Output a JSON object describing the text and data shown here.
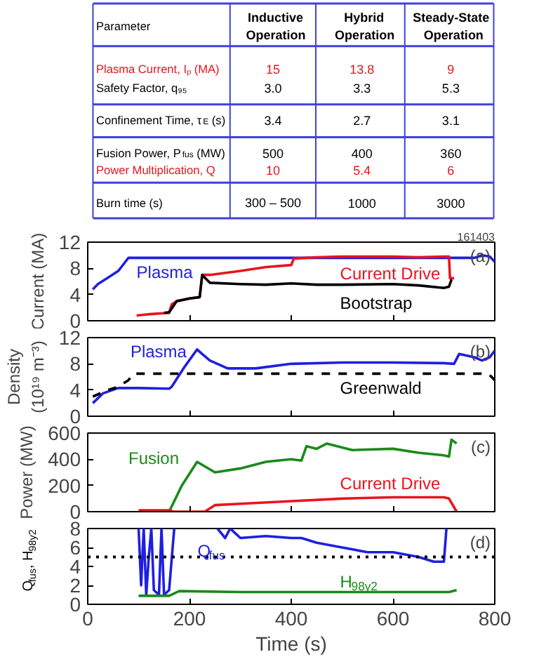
{
  "chart_data": [
    {
      "type": "other",
      "annotations": [
        "Parameter",
        "Inductive\nOperation",
        "Hybrid\nOperation",
        "Steady-State\nOperation",
        "Plasma Current, Iₚ (MA)",
        "15",
        "13.8",
        "9",
        "Safety Factor, q₉₅",
        "3.0",
        "3.3",
        "5.3",
        "Confinement Time, τ$_{E}$ (s)",
        "3.4",
        "2.7",
        "3.1",
        "Fusion Power, P$_{fus}$ (MW)",
        "500",
        "400",
        "360",
        "Power Multiplication, Q",
        "10",
        "5.4",
        "6",
        "Burn time (s)",
        "300 – 500",
        "1000",
        "3000"
      ],
      "colors": [
        "#000000",
        "#000000",
        "#000000",
        "#000000",
        "#e8141e",
        "#e8141e",
        "#e8141e",
        "#e8141e",
        "#000000",
        "#000000",
        "#000000",
        "#000000",
        "#000000",
        "#000000",
        "#000000",
        "#000000",
        "#000000",
        "#000000",
        "#000000",
        "#000000",
        "#e8141e",
        "#e8141e",
        "#e8141e",
        "#e8141e",
        "#000000",
        "#000000",
        "#000000",
        "#000000"
      ]
    },
    {
      "type": "line",
      "title": "161403",
      "ylabel": "Current (MA)",
      "xlim": [
        0,
        800
      ],
      "xticks": [
        0,
        200,
        400,
        600,
        800
      ],
      "ylim": [
        0,
        12
      ],
      "yticks": [
        0,
        4,
        8,
        12
      ],
      "tick_labels": "y",
      "grid": false,
      "line_style": "solid",
      "marker": "none",
      "series": [
        {
          "name": "Plasma",
          "color": "#1f1fe0",
          "x": [
            10,
            20,
            40,
            60,
            70,
            80,
            200,
            400,
            600,
            760,
            775,
            790,
            800
          ],
          "values": [
            4.8,
            5.6,
            6.6,
            7.6,
            8.6,
            9.6,
            9.6,
            9.6,
            9.6,
            9.6,
            10,
            9.8,
            9.0
          ]
        },
        {
          "name": "Current Drive",
          "color": "#e8141e",
          "x": [
            96,
            120,
            160,
            165,
            175,
            200,
            220,
            225,
            240,
            300,
            350,
            400,
            405,
            450,
            500,
            600,
            650,
            700,
            710,
            712,
            720
          ],
          "values": [
            0.8,
            1.0,
            1.2,
            2.5,
            3.0,
            3.4,
            3.6,
            7.0,
            7.0,
            7.6,
            8.2,
            8.5,
            9.5,
            9.7,
            9.8,
            9.8,
            9.7,
            9.8,
            9.8,
            6.5,
            6.5
          ]
        },
        {
          "name": "Bootstrap",
          "color": "#000000",
          "x": [
            150,
            160,
            175,
            200,
            220,
            225,
            240,
            300,
            350,
            400,
            450,
            500,
            600,
            650,
            700,
            710,
            715
          ],
          "values": [
            1.2,
            1.3,
            3.0,
            3.4,
            3.6,
            7.0,
            5.8,
            5.6,
            5.5,
            5.7,
            5.5,
            5.5,
            5.6,
            5.4,
            5.0,
            5.2,
            6.3
          ]
        }
      ],
      "annotations": [
        "(a)"
      ]
    },
    {
      "type": "line",
      "ylabel": "Density\n(10¹⁹ m⁻³)",
      "xlim": [
        0,
        800
      ],
      "xticks": [
        0,
        200,
        400,
        600,
        800
      ],
      "ylim": [
        0,
        12
      ],
      "yticks": [
        0,
        4,
        8,
        12
      ],
      "tick_labels": "y",
      "grid": false,
      "marker": "none",
      "series": [
        {
          "name": "Plasma",
          "color": "#1f1fe0",
          "line_style": "solid",
          "x": [
            10,
            30,
            60,
            100,
            160,
            165,
            190,
            215,
            225,
            240,
            275,
            330,
            400,
            500,
            600,
            700,
            720,
            730,
            760,
            775,
            790,
            800
          ],
          "values": [
            2.0,
            3.5,
            4.3,
            4.3,
            4.2,
            4.5,
            7.5,
            10.2,
            9.5,
            8.5,
            7.3,
            7.3,
            8.0,
            8.2,
            8.2,
            8.1,
            8.0,
            9.5,
            9.0,
            8.5,
            9.0,
            10.0
          ]
        },
        {
          "name": "Greenwald",
          "color": "#000000",
          "line_style": "dashed",
          "x": [
            10,
            40,
            60,
            80,
            90,
            200,
            400,
            600,
            780,
            790,
            800
          ],
          "values": [
            3.0,
            4.0,
            4.5,
            5.5,
            6.5,
            6.5,
            6.5,
            6.5,
            6.5,
            6.3,
            5.5
          ]
        }
      ],
      "annotations": [
        "(b)"
      ]
    },
    {
      "type": "line",
      "ylabel": "Power (MW)",
      "xlim": [
        0,
        800
      ],
      "xticks": [
        0,
        200,
        400,
        600,
        800
      ],
      "ylim": [
        0,
        600
      ],
      "yticks": [
        0,
        200,
        400,
        600
      ],
      "tick_labels": "y",
      "grid": false,
      "line_style": "solid",
      "marker": "none",
      "series": [
        {
          "name": "Fusion",
          "color": "#1a8a1a",
          "x": [
            100,
            160,
            185,
            215,
            250,
            300,
            350,
            400,
            420,
            430,
            450,
            470,
            520,
            600,
            650,
            700,
            710,
            715,
            725
          ],
          "values": [
            0,
            0,
            200,
            380,
            300,
            330,
            380,
            400,
            390,
            500,
            480,
            520,
            470,
            480,
            450,
            430,
            420,
            550,
            520
          ]
        },
        {
          "name": "Current Drive",
          "color": "#e8141e",
          "x": [
            100,
            160,
            170,
            230,
            250,
            300,
            400,
            500,
            600,
            700,
            710,
            725
          ],
          "values": [
            10,
            10,
            0,
            0,
            50,
            60,
            80,
            100,
            110,
            110,
            100,
            0
          ]
        }
      ],
      "annotations": [
        "(c)"
      ]
    },
    {
      "type": "line",
      "xlabel": "Time (s)",
      "ylabel": "Q$_{fus}$, H$_{98y2}$",
      "xlim": [
        0,
        800
      ],
      "xticks": [
        0,
        200,
        400,
        600,
        800
      ],
      "ylim": [
        0,
        8
      ],
      "yticks": [
        0,
        2,
        4,
        6,
        8
      ],
      "grid": false,
      "line_style": "solid",
      "marker": "none",
      "ref_lines": [
        {
          "axis": "y",
          "value": 5,
          "color": "#000000",
          "line_style": "dotted"
        }
      ],
      "series": [
        {
          "name": "Q$_{fus}$",
          "color": "#1f1fe0",
          "x": [
            100,
            105,
            110,
            115,
            120,
            125,
            130,
            140,
            145,
            150,
            160,
            170,
            175,
            250,
            255,
            270,
            280,
            300,
            350,
            400,
            420,
            450,
            500,
            550,
            600,
            650,
            680,
            700,
            705
          ],
          "values": [
            8,
            2,
            8,
            1,
            5,
            8,
            1.5,
            1,
            8,
            1,
            1.5,
            8,
            null,
            null,
            8,
            7,
            8,
            7,
            7.2,
            7,
            7,
            6.5,
            6,
            5.5,
            5.5,
            5,
            4.5,
            4.5,
            8
          ]
        },
        {
          "name": "H$_{98y2}$",
          "color": "#1a8a1a",
          "x": [
            100,
            160,
            180,
            300,
            500,
            700,
            710,
            725
          ],
          "values": [
            0.9,
            0.9,
            1.4,
            1.3,
            1.3,
            1.3,
            1.3,
            1.5
          ]
        }
      ],
      "annotations": [
        "(d)"
      ]
    }
  ]
}
